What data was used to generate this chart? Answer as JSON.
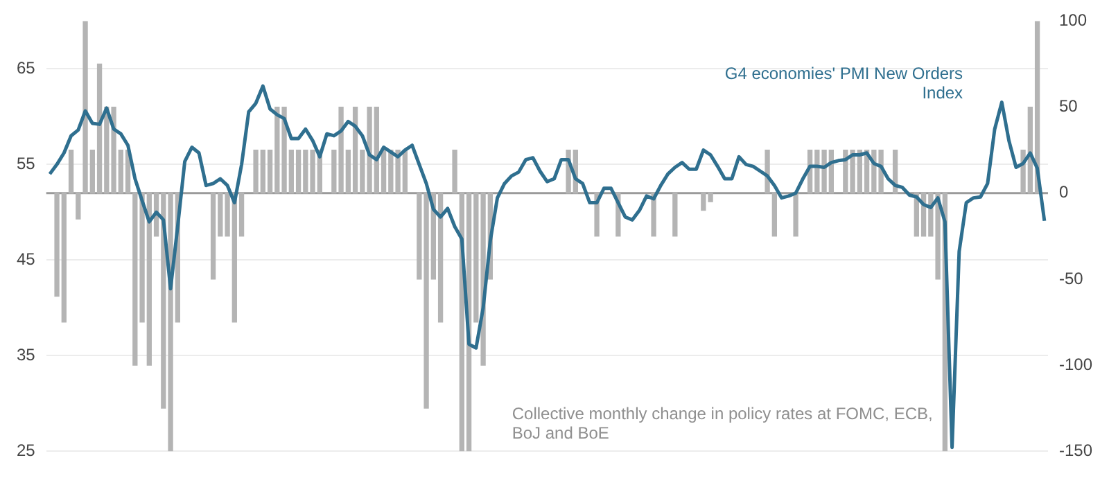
{
  "chart_data": {
    "type": "bar",
    "categories": [
      null,
      null,
      null,
      null,
      null,
      null,
      null,
      null,
      null,
      null,
      null,
      null,
      null,
      null,
      null,
      null,
      null,
      null,
      null,
      null,
      null,
      null,
      null,
      null,
      null,
      null,
      null,
      null,
      null,
      null,
      null,
      null,
      null,
      null,
      null,
      null,
      null,
      null,
      null,
      null,
      null,
      null,
      null,
      null,
      null,
      null,
      null,
      null,
      null,
      null,
      null,
      null,
      null,
      null,
      null,
      null,
      null,
      null,
      null,
      null,
      null,
      null,
      null,
      null,
      null,
      null,
      null,
      null,
      null,
      null,
      null,
      null,
      null,
      null,
      null,
      null,
      null,
      null,
      null,
      null,
      null,
      null,
      null,
      null,
      null,
      null,
      null,
      null,
      null,
      null,
      null,
      null,
      null,
      null,
      null,
      null,
      null,
      null,
      null,
      null,
      null,
      null,
      null,
      null,
      null,
      null,
      null,
      null,
      null,
      null,
      null,
      null,
      null,
      null,
      null,
      null,
      null,
      null,
      null,
      null,
      null,
      null,
      null,
      null,
      null,
      null,
      null,
      null,
      null,
      null,
      null,
      null,
      null,
      null,
      null,
      null,
      null,
      null,
      null,
      null,
      null
    ],
    "ylim": [
      25,
      70
    ],
    "yticks": [
      25,
      35,
      45,
      55,
      65
    ],
    "y2lim": [
      -150,
      100
    ],
    "y2ticks": [
      -150,
      -100,
      -50,
      0,
      50,
      100
    ],
    "grid": "y",
    "legend": false,
    "ref_lines": [
      {
        "axis": "y2",
        "value": 0,
        "color": "#9a9a9a"
      }
    ],
    "series": [
      {
        "name": "Collective monthly change in policy rates at FOMC, ECB, BoJ and BoE",
        "axis": "y2",
        "color": "#b4b4b4",
        "values": [
          null,
          -60,
          -75,
          25,
          -15,
          100,
          25,
          75,
          50,
          50,
          25,
          25,
          -100,
          -75,
          -100,
          -25,
          -125,
          -150,
          -75,
          null,
          null,
          null,
          null,
          -50,
          -25,
          -25,
          -75,
          -25,
          null,
          25,
          25,
          25,
          50,
          50,
          25,
          25,
          25,
          25,
          25,
          null,
          25,
          50,
          25,
          50,
          25,
          50,
          50,
          25,
          25,
          25,
          25,
          null,
          -50,
          -125,
          -50,
          -75,
          null,
          25,
          -150,
          -150,
          -75,
          -100,
          -50,
          null,
          null,
          null,
          null,
          null,
          null,
          null,
          null,
          null,
          null,
          25,
          25,
          null,
          null,
          -25,
          null,
          null,
          -25,
          null,
          null,
          null,
          null,
          -25,
          null,
          null,
          -25,
          null,
          null,
          null,
          -10,
          -5,
          null,
          null,
          null,
          null,
          null,
          null,
          null,
          25,
          -25,
          null,
          null,
          -25,
          null,
          25,
          25,
          25,
          25,
          null,
          25,
          25,
          25,
          25,
          25,
          25,
          null,
          25,
          null,
          null,
          -25,
          -25,
          -25,
          -50,
          -150,
          null,
          null,
          null,
          null,
          null,
          null,
          null,
          null,
          null,
          null,
          25,
          50,
          100,
          null
        ]
      },
      {
        "name": "G4 economies' PMI New Orders Index",
        "type": "line",
        "axis": "y",
        "color": "#2f6f8f",
        "values": [
          54,
          55,
          56.2,
          58,
          58.6,
          60.6,
          59.3,
          59.2,
          60.9,
          58.7,
          58.2,
          57,
          53.5,
          51.2,
          49,
          50,
          49.2,
          42,
          48.5,
          55.3,
          56.8,
          56.2,
          52.8,
          53,
          53.5,
          52.8,
          51,
          55,
          60.5,
          61.4,
          63.2,
          60.8,
          60.2,
          59.8,
          57.7,
          57.7,
          58.7,
          57.5,
          55.8,
          58.2,
          58,
          58.5,
          59.5,
          59,
          58,
          56,
          55.5,
          56.8,
          56.3,
          55.8,
          56.5,
          57,
          55,
          53,
          50.3,
          49.5,
          50.4,
          48.5,
          47.2,
          36.2,
          35.8,
          40,
          47,
          51.5,
          53,
          53.8,
          54.2,
          55.5,
          55.7,
          54.3,
          53.2,
          53.5,
          55.5,
          55.5,
          53.5,
          53,
          51,
          51,
          52.5,
          52.5,
          51,
          49.5,
          49.2,
          50.2,
          51.7,
          51.4,
          52.8,
          54,
          54.7,
          55.2,
          54.5,
          54.5,
          56.5,
          56,
          54.8,
          53.5,
          53.5,
          55.8,
          55,
          54.8,
          54.3,
          53.8,
          52.8,
          51.5,
          51.7,
          52,
          53.5,
          54.8,
          54.8,
          54.7,
          55.2,
          55.4,
          55.5,
          56,
          56,
          56.2,
          55.1,
          54.8,
          53.5,
          52.8,
          52.6,
          51.8,
          51.6,
          50.8,
          50.5,
          51.5,
          49,
          25.4,
          45.9,
          51,
          51.5,
          51.6,
          53,
          58.7,
          61.5,
          57.5,
          54.7,
          55.1,
          56.2,
          54.6,
          49.1
        ]
      }
    ]
  }
}
